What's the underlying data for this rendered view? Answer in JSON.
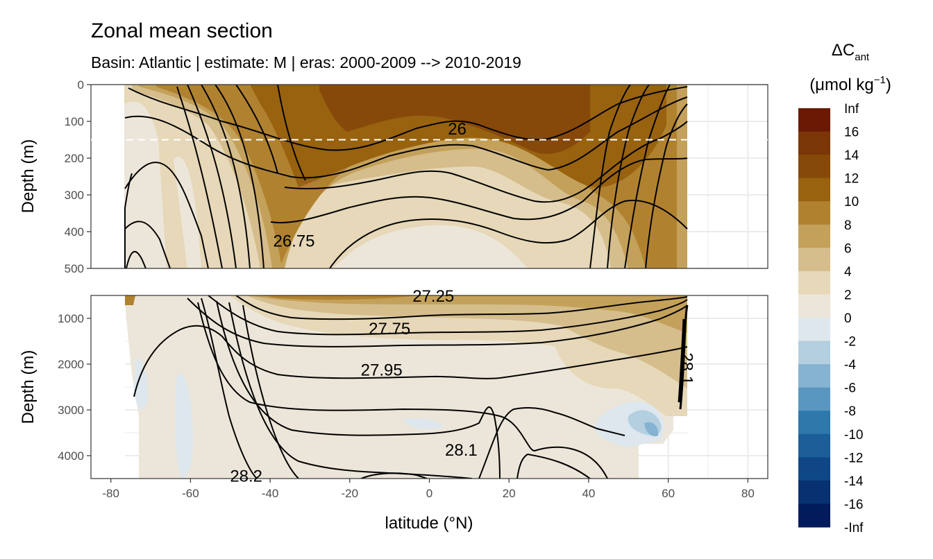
{
  "chart_data": {
    "type": "heatmap",
    "title": "Zonal mean section",
    "subtitle": "Basin: Atlantic | estimate: M  | eras: 2000-2009 --> 2010-2019",
    "xlabel": "latitude (°N)",
    "ylabel": "Depth (m)",
    "xlim": [
      -85,
      85
    ],
    "x_ticks": [
      "-80",
      "-60",
      "-40",
      "-20",
      "0",
      "20",
      "40",
      "60",
      "80"
    ],
    "grid": true,
    "panels": [
      {
        "name": "upper",
        "ylim": [
          0,
          500
        ],
        "y_ticks": [
          "0",
          "100",
          "200",
          "300",
          "400",
          "500"
        ],
        "reference_depth": 150
      },
      {
        "name": "lower",
        "ylim": [
          500,
          4500
        ],
        "y_ticks": [
          "1000",
          "2000",
          "3000",
          "4000"
        ]
      }
    ],
    "legend": {
      "title_main": "ΔC",
      "title_sub": "ant",
      "units": "(μmol kg",
      "units_sup": "−1",
      "units_end": ")",
      "placement": "right",
      "labels": [
        "Inf",
        "16",
        "14",
        "12",
        "10",
        "8",
        "6",
        "4",
        "2",
        "0",
        "-2",
        "-4",
        "-6",
        "-8",
        "-10",
        "-12",
        "-14",
        "-16",
        "-Inf"
      ],
      "colors": [
        "#6a1a04",
        "#7a3607",
        "#86490a",
        "#98620f",
        "#b08230",
        "#c4a15a",
        "#d5bd8c",
        "#e6d8b8",
        "#ece6da",
        "#dde7ed",
        "#b3cfe0",
        "#86b3d1",
        "#5a97c0",
        "#2f78ab",
        "#1b5e98",
        "#0f4786",
        "#073170",
        "#011b5b"
      ]
    },
    "contours": [
      {
        "level": "26",
        "lat": 7,
        "depth": 121
      },
      {
        "level": "26.75",
        "lat": -34,
        "depth": 425
      },
      {
        "level": "27.25",
        "lat": 1,
        "depth": 515
      },
      {
        "level": "27.75",
        "lat": -10,
        "depth": 1230
      },
      {
        "level": "27.95",
        "lat": -12,
        "depth": 2130
      },
      {
        "level": "28.1",
        "lat": 8,
        "depth": 3880
      },
      {
        "level": "28.2",
        "lat": -46,
        "depth": 4450
      },
      {
        "level": "28.1",
        "lat": 64,
        "depth": 2100
      }
    ]
  }
}
